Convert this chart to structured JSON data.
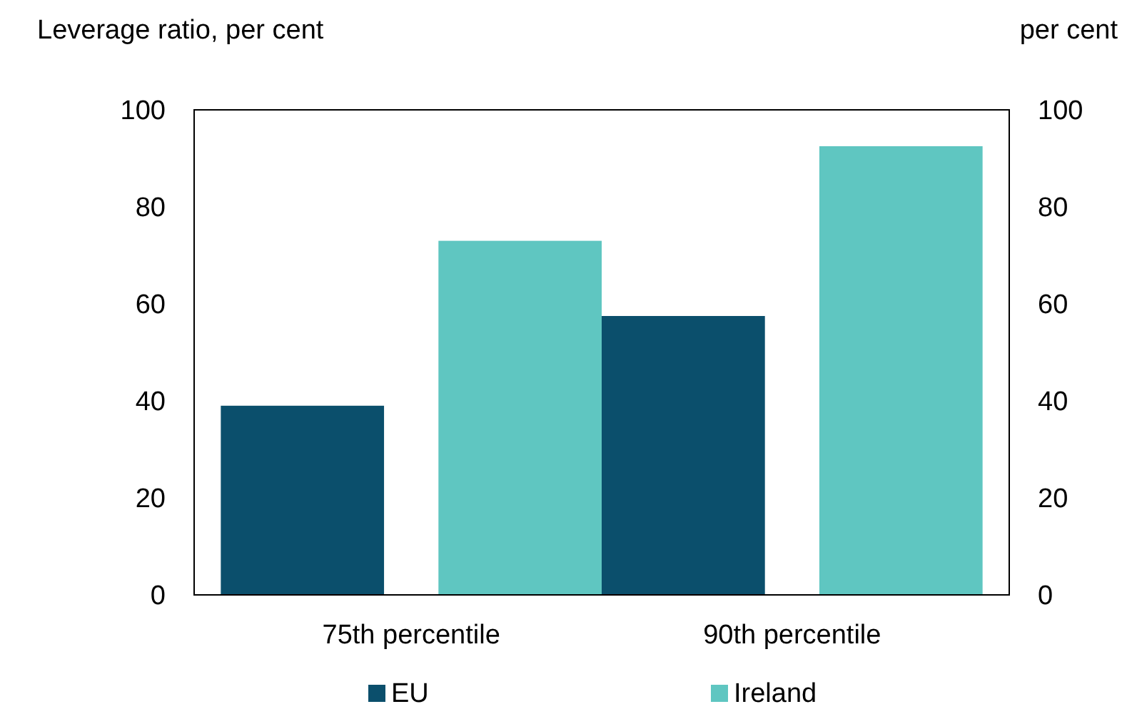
{
  "chart_data": {
    "type": "bar",
    "ylabel": "Leverage ratio, per cent",
    "y2label": "per cent",
    "categories": [
      "75th percentile",
      "90th percentile"
    ],
    "series": [
      {
        "name": "EU",
        "color": "#0b4f6c",
        "values": [
          39,
          57.5
        ]
      },
      {
        "name": "Ireland",
        "color": "#5fc6c1",
        "values": [
          73,
          92.5
        ]
      }
    ],
    "ylim": [
      0,
      100
    ],
    "yticks": [
      0,
      20,
      40,
      60,
      80,
      100
    ],
    "y2lim": [
      0,
      100
    ],
    "y2ticks": [
      0,
      20,
      40,
      60,
      80,
      100
    ],
    "grid": false,
    "legend": "bottom"
  }
}
